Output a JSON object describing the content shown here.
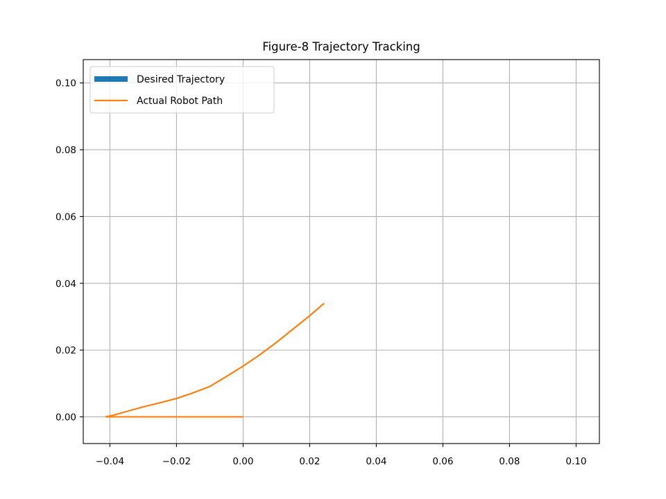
{
  "chart_data": {
    "type": "line",
    "title": "Figure-8 Trajectory Tracking",
    "xlabel": "",
    "ylabel": "",
    "xlim": [
      -0.048,
      0.107
    ],
    "ylim": [
      -0.008,
      0.107
    ],
    "xticks": [
      -0.04,
      -0.02,
      0.0,
      0.02,
      0.04,
      0.06,
      0.08,
      0.1
    ],
    "xtick_labels": [
      "−0.04",
      "−0.02",
      "0.00",
      "0.02",
      "0.04",
      "0.06",
      "0.08",
      "0.10"
    ],
    "yticks": [
      0.0,
      0.02,
      0.04,
      0.06,
      0.08,
      0.1
    ],
    "ytick_labels": [
      "0.00",
      "0.02",
      "0.04",
      "0.06",
      "0.08",
      "0.10"
    ],
    "grid": true,
    "legend_position": "upper-left",
    "series": [
      {
        "name": "Desired Trajectory",
        "color": "#1f77b4",
        "style": "thick",
        "points": []
      },
      {
        "name": "Actual Robot Path",
        "color": "#ff7f0e",
        "style": "thin",
        "points": [
          [
            0.0,
            0.0
          ],
          [
            -0.01,
            0.0
          ],
          [
            -0.02,
            0.0
          ],
          [
            -0.03,
            0.0
          ],
          [
            -0.04,
            0.0
          ],
          [
            -0.0412,
            0.0
          ],
          [
            -0.039,
            0.0005
          ],
          [
            -0.035,
            0.0016
          ],
          [
            -0.03,
            0.003
          ],
          [
            -0.025,
            0.0042
          ],
          [
            -0.02,
            0.0055
          ],
          [
            -0.015,
            0.0072
          ],
          [
            -0.01,
            0.0091
          ],
          [
            -0.005,
            0.0121
          ],
          [
            0.0,
            0.0152
          ],
          [
            0.005,
            0.0186
          ],
          [
            0.01,
            0.0223
          ],
          [
            0.015,
            0.0263
          ],
          [
            0.02,
            0.0303
          ],
          [
            0.0243,
            0.034
          ]
        ]
      }
    ]
  }
}
